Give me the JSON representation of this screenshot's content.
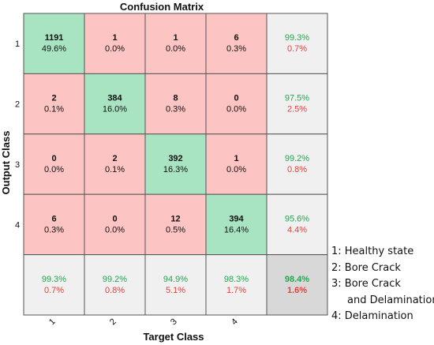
{
  "chart_data": {
    "type": "heatmap",
    "title": "Confusion Matrix",
    "xlabel": "Target Class",
    "ylabel": "Output Class",
    "x_tick_labels": [
      "1",
      "2",
      "3",
      "4"
    ],
    "y_tick_labels": [
      "1",
      "2",
      "3",
      "4"
    ],
    "matrix": [
      [
        {
          "count": "1191",
          "pct": "49.6%"
        },
        {
          "count": "1",
          "pct": "0.0%"
        },
        {
          "count": "1",
          "pct": "0.0%"
        },
        {
          "count": "6",
          "pct": "0.3%"
        }
      ],
      [
        {
          "count": "2",
          "pct": "0.1%"
        },
        {
          "count": "384",
          "pct": "16.0%"
        },
        {
          "count": "8",
          "pct": "0.3%"
        },
        {
          "count": "0",
          "pct": "0.0%"
        }
      ],
      [
        {
          "count": "0",
          "pct": "0.0%"
        },
        {
          "count": "2",
          "pct": "0.1%"
        },
        {
          "count": "392",
          "pct": "16.3%"
        },
        {
          "count": "1",
          "pct": "0.0%"
        }
      ],
      [
        {
          "count": "6",
          "pct": "0.3%"
        },
        {
          "count": "0",
          "pct": "0.0%"
        },
        {
          "count": "12",
          "pct": "0.5%"
        },
        {
          "count": "394",
          "pct": "16.4%"
        }
      ]
    ],
    "row_summary": [
      {
        "correct": "99.3%",
        "wrong": "0.7%"
      },
      {
        "correct": "97.5%",
        "wrong": "2.5%"
      },
      {
        "correct": "99.2%",
        "wrong": "0.8%"
      },
      {
        "correct": "95.6%",
        "wrong": "4.4%"
      }
    ],
    "col_summary": [
      {
        "correct": "99.3%",
        "wrong": "0.7%"
      },
      {
        "correct": "99.2%",
        "wrong": "0.8%"
      },
      {
        "correct": "94.9%",
        "wrong": "5.1%"
      },
      {
        "correct": "98.3%",
        "wrong": "1.7%"
      }
    ],
    "overall": {
      "correct": "98.4%",
      "wrong": "1.6%"
    },
    "colors": {
      "diagonal": "#a8e4c2",
      "off_diagonal": "#fcc4c2",
      "summary": "#f0f0f0",
      "overall": "#d8d8d8",
      "correct_text": "#1fa84f",
      "wrong_text": "#e8413c",
      "grid": "#555555"
    }
  },
  "legend": {
    "items": [
      "1: Healthy state",
      "2: Bore Crack",
      "3: Bore Crack",
      "and Delamination",
      "4: Delamination"
    ]
  }
}
